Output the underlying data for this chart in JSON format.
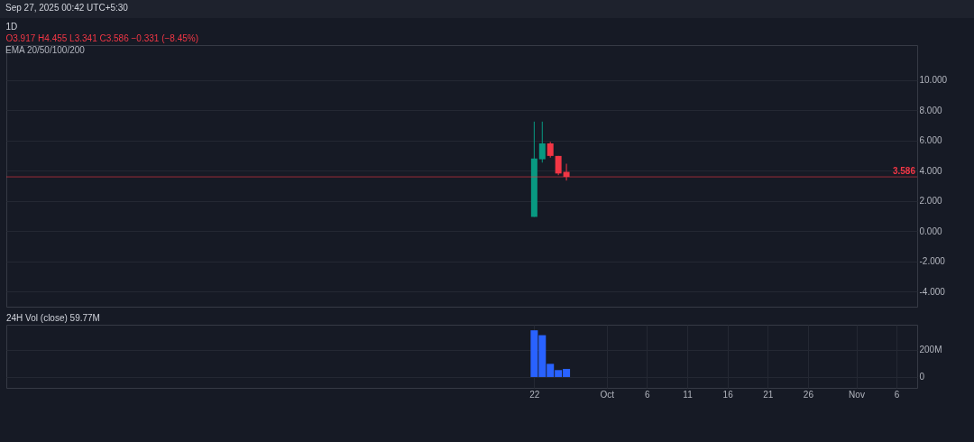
{
  "chart_data": [
    {
      "type": "candlestick",
      "title": "1D",
      "subtitle": "O3.917 H4.455 L3.341 C3.586 −0.331 (−8.45%)",
      "annotations": [
        "Sep 27, 2025 00:42 UTC+5:30",
        "EMA 20/50/100/200"
      ],
      "x": [
        "2025-09-22",
        "2025-09-23",
        "2025-09-24",
        "2025-09-25",
        "2025-09-26"
      ],
      "ohlc": [
        [
          0.94,
          7.24,
          0.94,
          4.8
        ],
        [
          4.75,
          7.24,
          4.53,
          5.8
        ],
        [
          5.8,
          5.9,
          4.86,
          4.97
        ],
        [
          4.97,
          4.97,
          3.7,
          3.81
        ],
        [
          3.917,
          4.455,
          3.341,
          3.586
        ]
      ],
      "colors": [
        "#089981",
        "#089981",
        "#f23645",
        "#f23645",
        "#f23645"
      ],
      "xlim": [
        "2025-07-19",
        "2025-11-08"
      ],
      "ylim": [
        -5,
        12.3
      ],
      "yticks": [
        {
          "value": -4,
          "label": "-4.000"
        },
        {
          "value": -2,
          "label": "-2.000"
        },
        {
          "value": 0,
          "label": "0.000"
        },
        {
          "value": 2,
          "label": "2.000"
        },
        {
          "value": 4,
          "label": "4.000"
        },
        {
          "value": 6,
          "label": "6.000"
        },
        {
          "value": 8,
          "label": "8.000"
        },
        {
          "value": 10,
          "label": "10.000"
        }
      ],
      "ref_lines": [
        {
          "axis": "y",
          "value": 3.586,
          "label": "3.586",
          "color": "#f23645"
        }
      ],
      "grid": true,
      "tick_labels": "y"
    },
    {
      "type": "bar",
      "title": "24H Vol (close) 59.77M",
      "x": [
        "2025-09-22",
        "2025-09-23",
        "2025-09-24",
        "2025-09-25",
        "2025-09-26"
      ],
      "values": [
        344,
        308,
        97,
        51,
        59.77
      ],
      "color": "#2962ff",
      "xlim": [
        "2025-07-19",
        "2025-11-08"
      ],
      "ylim": [
        -80,
        385
      ],
      "yticks": [
        {
          "value": 0,
          "label": "0"
        },
        {
          "value": 200,
          "label": "200M"
        }
      ],
      "xticks": [
        {
          "value": "2025-09-22",
          "label": "22"
        },
        {
          "value": "2025-10-01",
          "label": "Oct"
        },
        {
          "value": "2025-10-06",
          "label": "6"
        },
        {
          "value": "2025-10-11",
          "label": "11"
        },
        {
          "value": "2025-10-16",
          "label": "16"
        },
        {
          "value": "2025-10-21",
          "label": "21"
        },
        {
          "value": "2025-10-26",
          "label": "26"
        },
        {
          "value": "2025-11-01",
          "label": "Nov"
        },
        {
          "value": "2025-11-06",
          "label": "6"
        }
      ],
      "grid": true
    }
  ]
}
